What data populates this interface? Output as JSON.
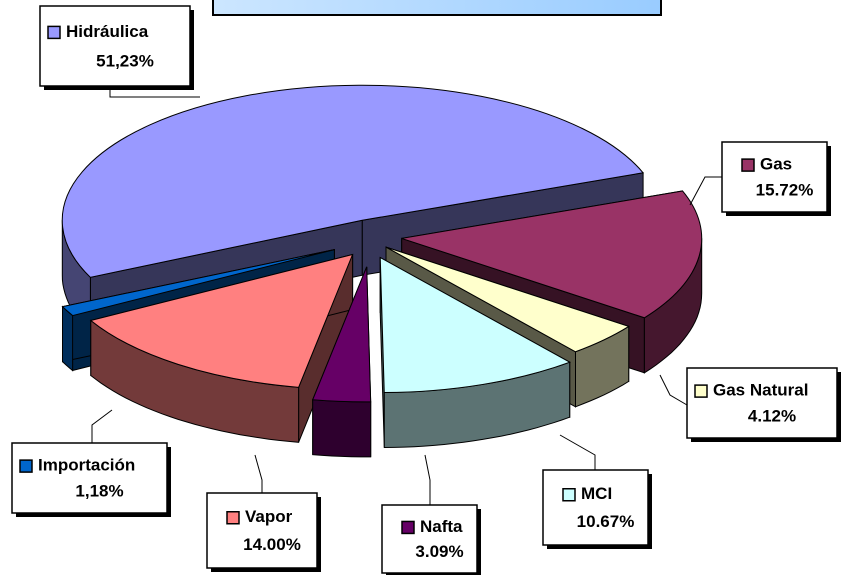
{
  "chart_data": {
    "type": "pie3d",
    "categories": [
      "Hidráulica",
      "Gas",
      "Gas Natural",
      "MCI",
      "Nafta",
      "Vapor",
      "Importación"
    ],
    "values": [
      51.23,
      15.72,
      4.12,
      10.67,
      3.09,
      14.0,
      1.18
    ],
    "value_labels": [
      "51,23%",
      "15.72%",
      "4.12%",
      "10.67%",
      "3.09%",
      "14.00%",
      "1,18%"
    ],
    "colors": [
      "#9999ff",
      "#993366",
      "#ffffcc",
      "#ccffff",
      "#660066",
      "#ff8080",
      "#0066cc"
    ]
  }
}
